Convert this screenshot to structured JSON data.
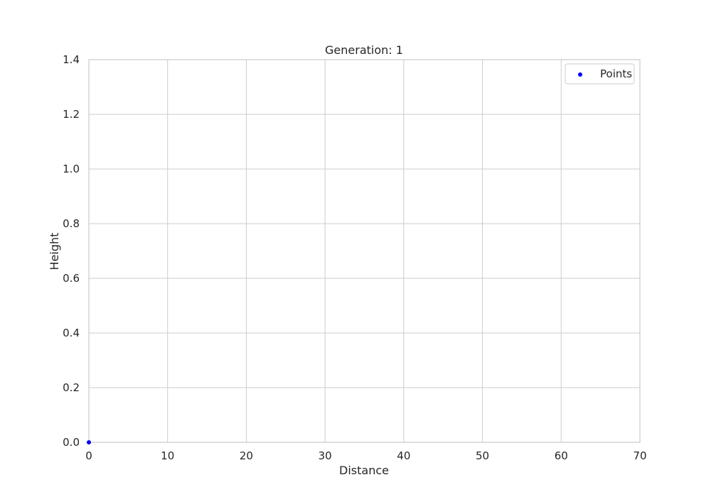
{
  "chart_data": {
    "type": "scatter",
    "title": "Generation: 1",
    "xlabel": "Distance",
    "ylabel": "Height",
    "xlim": [
      0,
      70
    ],
    "ylim": [
      0,
      1.4
    ],
    "xticks": [
      "0",
      "10",
      "20",
      "30",
      "40",
      "50",
      "60",
      "70"
    ],
    "yticks": [
      "0.0",
      "0.2",
      "0.4",
      "0.6",
      "0.8",
      "1.0",
      "1.2",
      "1.4"
    ],
    "grid": true,
    "legend_position": "top-right",
    "series": [
      {
        "name": "Points",
        "color": "#0000ff",
        "points": [
          {
            "x": 0,
            "y": 0
          }
        ]
      }
    ]
  }
}
